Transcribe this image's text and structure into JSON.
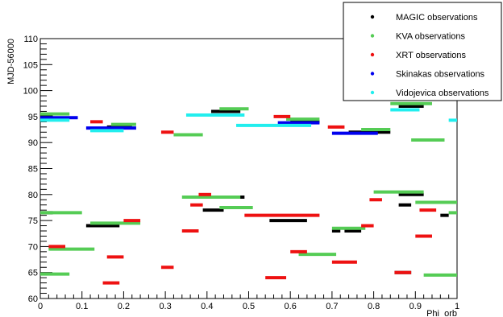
{
  "chart_data": {
    "type": "scatter",
    "title": "",
    "xlabel": "Phi_orb",
    "ylabel": "MJD-56000",
    "xlim": [
      0,
      1
    ],
    "ylim": [
      60,
      110
    ],
    "x_ticks": [
      "0",
      "0.1",
      "0.2",
      "0.3",
      "0.4",
      "0.5",
      "0.6",
      "0.7",
      "0.8",
      "0.9",
      "1"
    ],
    "y_ticks": [
      "60",
      "65",
      "70",
      "75",
      "80",
      "85",
      "90",
      "95",
      "100",
      "105",
      "110"
    ],
    "grid": false,
    "legend_position": "top-right",
    "series": [
      {
        "name": "MAGIC observations",
        "color": "#000000",
        "segments": [
          {
            "x": [
              0.0,
              0.03
            ],
            "y": 95
          },
          {
            "x": [
              0.0,
              0.03
            ],
            "y": 76.5
          },
          {
            "x": [
              0.11,
              0.19
            ],
            "y": 74
          },
          {
            "x": [
              0.16,
              0.22
            ],
            "y": 93
          },
          {
            "x": [
              0.35,
              0.45
            ],
            "y": 79.5
          },
          {
            "x": [
              0.39,
              0.44
            ],
            "y": 77
          },
          {
            "x": [
              0.41,
              0.48
            ],
            "y": 96
          },
          {
            "x": [
              0.43,
              0.49
            ],
            "y": 79.5
          },
          {
            "x": [
              0.55,
              0.64
            ],
            "y": 75
          },
          {
            "x": [
              0.6,
              0.67
            ],
            "y": 94
          },
          {
            "x": [
              0.7,
              0.72
            ],
            "y": 73
          },
          {
            "x": [
              0.73,
              0.77
            ],
            "y": 73
          },
          {
            "x": [
              0.74,
              0.84
            ],
            "y": 92
          },
          {
            "x": [
              0.85,
              0.89
            ],
            "y": 65
          },
          {
            "x": [
              0.86,
              0.89
            ],
            "y": 78
          },
          {
            "x": [
              0.86,
              0.92
            ],
            "y": 80
          },
          {
            "x": [
              0.86,
              0.92
            ],
            "y": 97
          },
          {
            "x": [
              0.96,
              0.98
            ],
            "y": 76
          }
        ]
      },
      {
        "name": "KVA observations",
        "color": "#55cc55",
        "segments": [
          {
            "x": [
              0.0,
              0.07
            ],
            "y": 95.5
          },
          {
            "x": [
              0.0,
              0.1
            ],
            "y": 76.5
          },
          {
            "x": [
              0.02,
              0.13
            ],
            "y": 69.5
          },
          {
            "x": [
              0.0,
              0.07
            ],
            "y": 64.7
          },
          {
            "x": [
              0.12,
              0.24
            ],
            "y": 74.5
          },
          {
            "x": [
              0.17,
              0.23
            ],
            "y": 93.5
          },
          {
            "x": [
              0.32,
              0.39
            ],
            "y": 91.5
          },
          {
            "x": [
              0.34,
              0.48
            ],
            "y": 79.5
          },
          {
            "x": [
              0.43,
              0.51
            ],
            "y": 77.5
          },
          {
            "x": [
              0.43,
              0.5
            ],
            "y": 96.5
          },
          {
            "x": [
              0.59,
              0.67
            ],
            "y": 94.5
          },
          {
            "x": [
              0.62,
              0.71
            ],
            "y": 68.5
          },
          {
            "x": [
              0.7,
              0.78
            ],
            "y": 73.5
          },
          {
            "x": [
              0.77,
              0.84
            ],
            "y": 92.5
          },
          {
            "x": [
              0.8,
              0.92
            ],
            "y": 80.5
          },
          {
            "x": [
              0.84,
              0.94
            ],
            "y": 97.5
          },
          {
            "x": [
              0.89,
              0.97
            ],
            "y": 90.5
          },
          {
            "x": [
              0.9,
              1.0
            ],
            "y": 78.5
          },
          {
            "x": [
              0.92,
              1.0
            ],
            "y": 64.5
          },
          {
            "x": [
              0.98,
              1.0
            ],
            "y": 76.5
          }
        ]
      },
      {
        "name": "XRT observations",
        "color": "#ee1111",
        "segments": [
          {
            "x": [
              0.02,
              0.06
            ],
            "y": 70
          },
          {
            "x": [
              0.12,
              0.15
            ],
            "y": 94
          },
          {
            "x": [
              0.15,
              0.19
            ],
            "y": 63
          },
          {
            "x": [
              0.16,
              0.2
            ],
            "y": 68
          },
          {
            "x": [
              0.2,
              0.24
            ],
            "y": 75
          },
          {
            "x": [
              0.29,
              0.32
            ],
            "y": 66
          },
          {
            "x": [
              0.29,
              0.32
            ],
            "y": 92
          },
          {
            "x": [
              0.34,
              0.38
            ],
            "y": 73
          },
          {
            "x": [
              0.36,
              0.39
            ],
            "y": 78
          },
          {
            "x": [
              0.38,
              0.41
            ],
            "y": 80
          },
          {
            "x": [
              0.54,
              0.59
            ],
            "y": 64
          },
          {
            "x": [
              0.49,
              0.67
            ],
            "y": 76
          },
          {
            "x": [
              0.56,
              0.6
            ],
            "y": 95
          },
          {
            "x": [
              0.6,
              0.64
            ],
            "y": 69
          },
          {
            "x": [
              0.69,
              0.73
            ],
            "y": 93
          },
          {
            "x": [
              0.7,
              0.76
            ],
            "y": 67
          },
          {
            "x": [
              0.77,
              0.8
            ],
            "y": 74
          },
          {
            "x": [
              0.79,
              0.82
            ],
            "y": 79
          },
          {
            "x": [
              0.85,
              0.89
            ],
            "y": 65
          },
          {
            "x": [
              0.9,
              0.94
            ],
            "y": 72
          },
          {
            "x": [
              0.91,
              0.95
            ],
            "y": 77
          }
        ]
      },
      {
        "name": "Skinakas observations",
        "color": "#0000ee",
        "segments": [
          {
            "x": [
              0.0,
              0.09
            ],
            "y": 94.8
          },
          {
            "x": [
              0.11,
              0.23
            ],
            "y": 92.8
          },
          {
            "x": [
              0.57,
              0.67
            ],
            "y": 93.8
          },
          {
            "x": [
              0.7,
              0.81
            ],
            "y": 91.8
          }
        ]
      },
      {
        "name": "Vidojevica observations",
        "color": "#22eeee",
        "segments": [
          {
            "x": [
              0.0,
              0.07
            ],
            "y": 94.3
          },
          {
            "x": [
              0.12,
              0.2
            ],
            "y": 92.3
          },
          {
            "x": [
              0.35,
              0.49
            ],
            "y": 95.3
          },
          {
            "x": [
              0.47,
              0.65
            ],
            "y": 93.3
          },
          {
            "x": [
              0.84,
              0.91
            ],
            "y": 96.3
          },
          {
            "x": [
              0.98,
              1.0
            ],
            "y": 94.3
          }
        ]
      }
    ]
  }
}
